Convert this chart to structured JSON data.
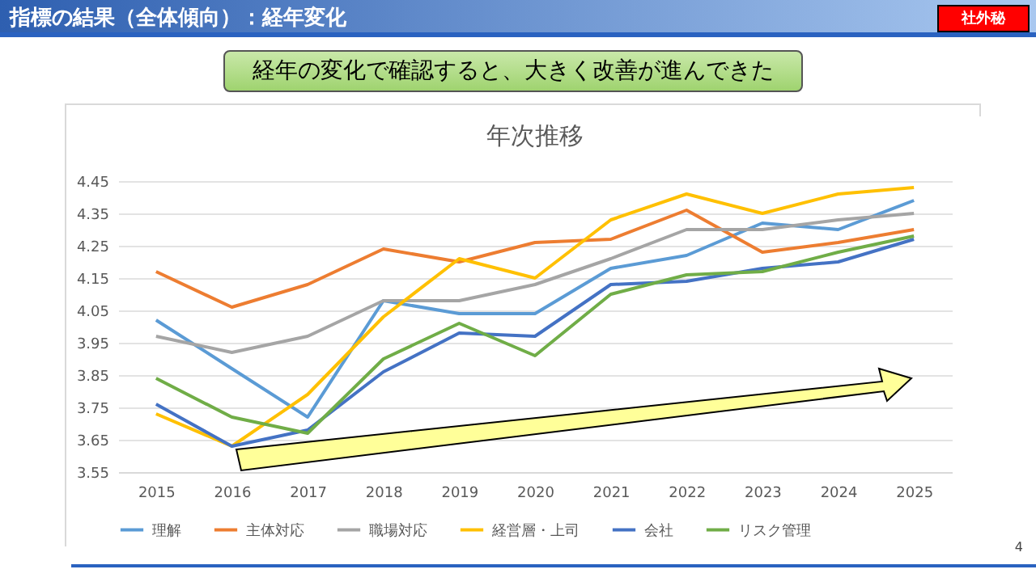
{
  "chart_data": {
    "type": "line",
    "title": "年次推移",
    "annotations": [
      "指標の結果（全体傾向）：経年変化",
      "社外秘",
      "経年の変化で確認すると、大きく改善が進んできた",
      "4"
    ],
    "categories": [
      "2015",
      "2016",
      "2017",
      "2018",
      "2019",
      "2020",
      "2021",
      "2022",
      "2023",
      "2024",
      "2025"
    ],
    "series": [
      {
        "name": "理解",
        "color": "#5b9bd5",
        "values": [
          4.02,
          3.87,
          3.72,
          4.08,
          4.04,
          4.04,
          4.18,
          4.22,
          4.32,
          4.3,
          4.39
        ]
      },
      {
        "name": "主体対応",
        "color": "#ed7d31",
        "values": [
          4.17,
          4.06,
          4.13,
          4.24,
          4.2,
          4.26,
          4.27,
          4.36,
          4.23,
          4.26,
          4.3
        ]
      },
      {
        "name": "職場対応",
        "color": "#a5a5a5",
        "values": [
          3.97,
          3.92,
          3.97,
          4.08,
          4.08,
          4.13,
          4.21,
          4.3,
          4.3,
          4.33,
          4.35
        ]
      },
      {
        "name": "経営層・上司",
        "color": "#ffc000",
        "values": [
          3.73,
          3.63,
          3.79,
          4.03,
          4.21,
          4.15,
          4.33,
          4.41,
          4.35,
          4.41,
          4.43
        ]
      },
      {
        "name": "会社",
        "color": "#4472c4",
        "values": [
          3.76,
          3.63,
          3.68,
          3.86,
          3.98,
          3.97,
          4.13,
          4.14,
          4.18,
          4.2,
          4.27
        ]
      },
      {
        "name": "リスク管理",
        "color": "#70ad47",
        "values": [
          3.84,
          3.72,
          3.67,
          3.9,
          4.01,
          3.91,
          4.1,
          4.16,
          4.17,
          4.23,
          4.28
        ]
      }
    ],
    "ylim": [
      3.55,
      4.45
    ],
    "yticks": [
      3.55,
      3.65,
      3.75,
      3.85,
      3.95,
      4.05,
      4.15,
      4.25,
      4.35,
      4.45
    ],
    "grid": "y",
    "legend": "bottom",
    "marker": "none",
    "line_style": "solid"
  }
}
